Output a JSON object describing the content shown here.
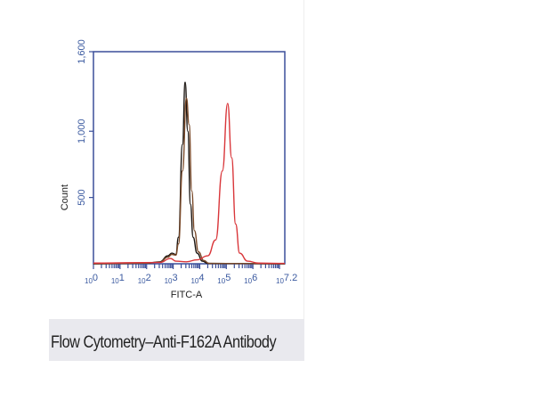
{
  "caption": "Flow Cytometry–Anti-F162A Antibody",
  "chart_data": {
    "type": "line",
    "title": "",
    "xlabel": "FITC-A",
    "ylabel": "Count",
    "xscale": "log",
    "xlim": [
      1,
      15848932
    ],
    "ylim": [
      0,
      1600
    ],
    "grid": false,
    "x_ticks": [
      {
        "base": "10",
        "exp": "0"
      },
      {
        "base": "10",
        "exp": "1"
      },
      {
        "base": "10",
        "exp": "2"
      },
      {
        "base": "10",
        "exp": "3"
      },
      {
        "base": "10",
        "exp": "4"
      },
      {
        "base": "10",
        "exp": "5"
      },
      {
        "base": "10",
        "exp": "6"
      },
      {
        "base": "10",
        "exp": "7.2"
      }
    ],
    "y_ticks": [
      {
        "value": 500,
        "label": "500"
      },
      {
        "value": 1000,
        "label": "1,000"
      },
      {
        "value": 1600,
        "label": "1,600"
      }
    ],
    "colors": {
      "axis": "#3b4f9a",
      "tick_label": "#3b5aa0"
    },
    "series": [
      {
        "color": "#1a1410",
        "x": [
          1,
          100,
          316,
          631,
          891,
          1259,
          1585,
          2239,
          2818,
          3548,
          4467,
          5623,
          7943,
          12589,
          19953,
          15848932
        ],
        "y": [
          0,
          5,
          15,
          60,
          80,
          70,
          200,
          900,
          1370,
          1000,
          450,
          200,
          80,
          20,
          3,
          0
        ]
      },
      {
        "color": "#7a4a2a",
        "x": [
          1,
          100,
          316,
          631,
          891,
          1259,
          1585,
          2239,
          3162,
          3981,
          5012,
          6310,
          8913,
          14125,
          22387,
          15848932
        ],
        "y": [
          0,
          5,
          12,
          50,
          70,
          65,
          150,
          700,
          1250,
          1050,
          550,
          250,
          90,
          25,
          3,
          0
        ]
      },
      {
        "color": "#d9363a",
        "x": [
          1,
          316,
          794,
          1259,
          3162,
          7943,
          19953,
          39811,
          70795,
          112202,
          158489,
          223872,
          316228,
          630957,
          1584893,
          15848932
        ],
        "y": [
          5,
          10,
          40,
          20,
          15,
          30,
          60,
          180,
          700,
          1210,
          800,
          300,
          80,
          20,
          5,
          3
        ]
      }
    ]
  }
}
